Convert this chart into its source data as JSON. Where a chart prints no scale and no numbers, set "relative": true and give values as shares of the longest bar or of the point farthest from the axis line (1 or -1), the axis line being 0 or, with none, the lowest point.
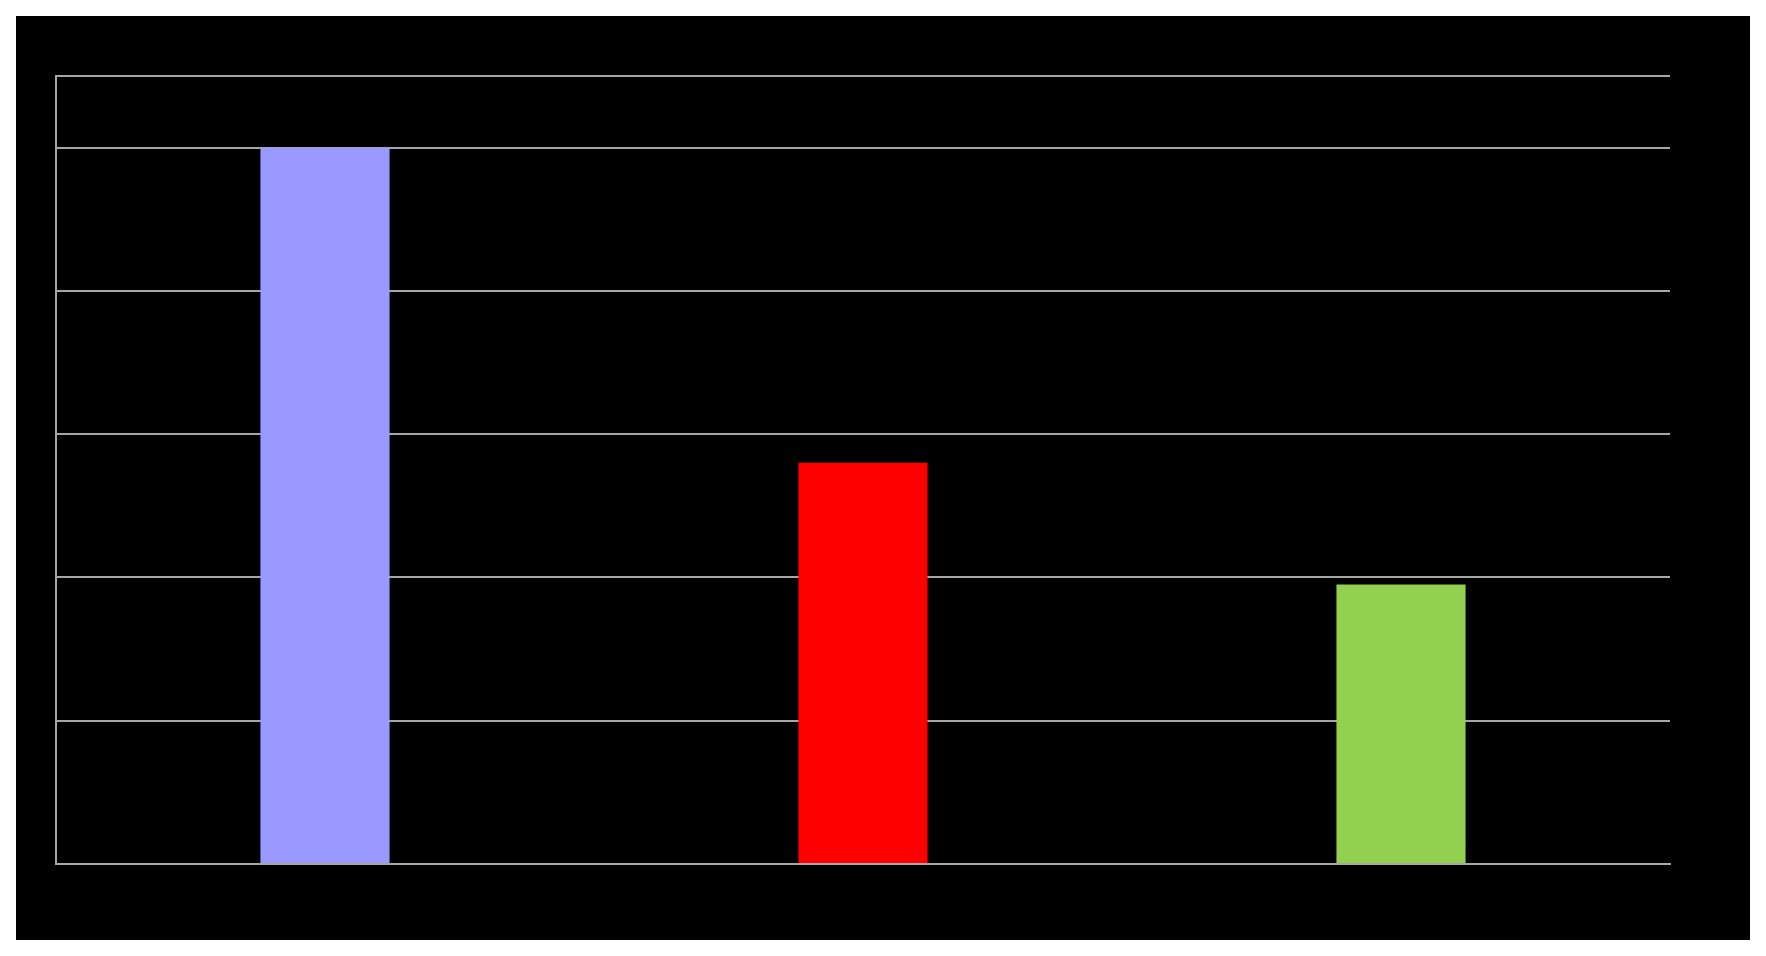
{
  "chart_data": {
    "type": "bar",
    "relative": true,
    "categories": [
      null,
      null,
      null
    ],
    "values": [
      1,
      0.56,
      0.39
    ],
    "colors": [
      "#9999ff",
      "#ff0000",
      "#92d050"
    ],
    "grid": "y"
  }
}
